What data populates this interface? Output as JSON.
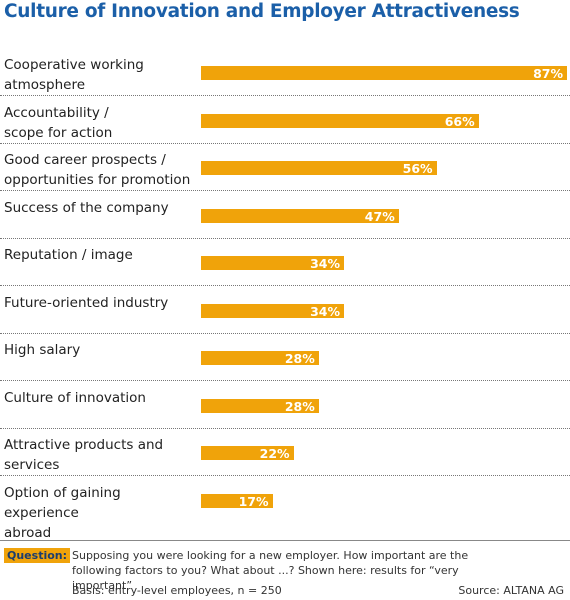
{
  "chart_data": {
    "type": "bar",
    "orientation": "horizontal",
    "title": "Culture of Innovation and Employer Attractiveness",
    "categories": [
      "Cooperative working\natmosphere",
      "Accountability /\nscope for action",
      "Good career prospects /\nopportunities for promotion",
      "Success of the company",
      "Reputation / image",
      "Future-oriented industry",
      "High salary",
      "Culture of innovation",
      "Attractive products and\nservices",
      "Option of gaining experience\nabroad"
    ],
    "values": [
      87,
      66,
      56,
      47,
      34,
      34,
      28,
      28,
      22,
      17
    ],
    "value_labels": [
      "87%",
      "66%",
      "56%",
      "47%",
      "34%",
      "34%",
      "28%",
      "28%",
      "22%",
      "17%"
    ],
    "color": "#f0a30a",
    "question_label": "Question:",
    "question": "Supposing you were looking for a new employer. How important are the following factors to you? What about ...? Shown here: results for “very important”",
    "basis": "Basis: entry-level employees, n = 250",
    "source": "Source: ALTANA AG"
  }
}
